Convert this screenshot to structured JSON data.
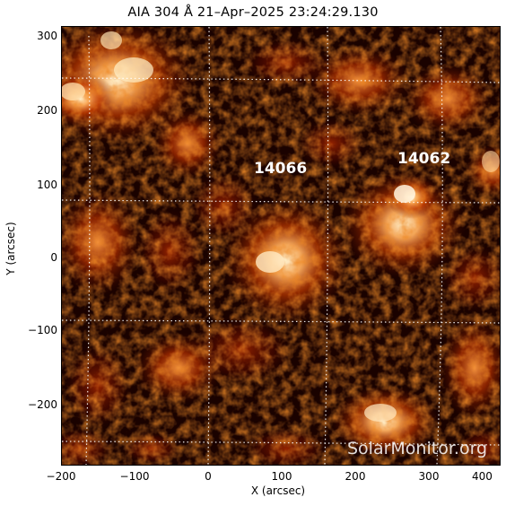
{
  "title": "AIA 304 Å 21–Apr–2025 23:24:29.130",
  "axes": {
    "xlabel": "X (arcsec)",
    "ylabel": "Y (arcsec)",
    "xticks": [
      "−200",
      "−100",
      "0",
      "100",
      "200",
      "300",
      "400"
    ],
    "yticks": [
      "300",
      "200",
      "100",
      "0",
      "−100",
      "−200"
    ]
  },
  "regions": [
    {
      "id": "14066",
      "label": "14066"
    },
    {
      "id": "14062",
      "label": "14062"
    }
  ],
  "watermark": "SolarMonitor.org",
  "colors": {
    "background_plot": "#140100",
    "plasma_low": "#5a0a00",
    "plasma_mid": "#c43a00",
    "plasma_high": "#ffb060",
    "plasma_peak": "#fff2d0"
  }
}
